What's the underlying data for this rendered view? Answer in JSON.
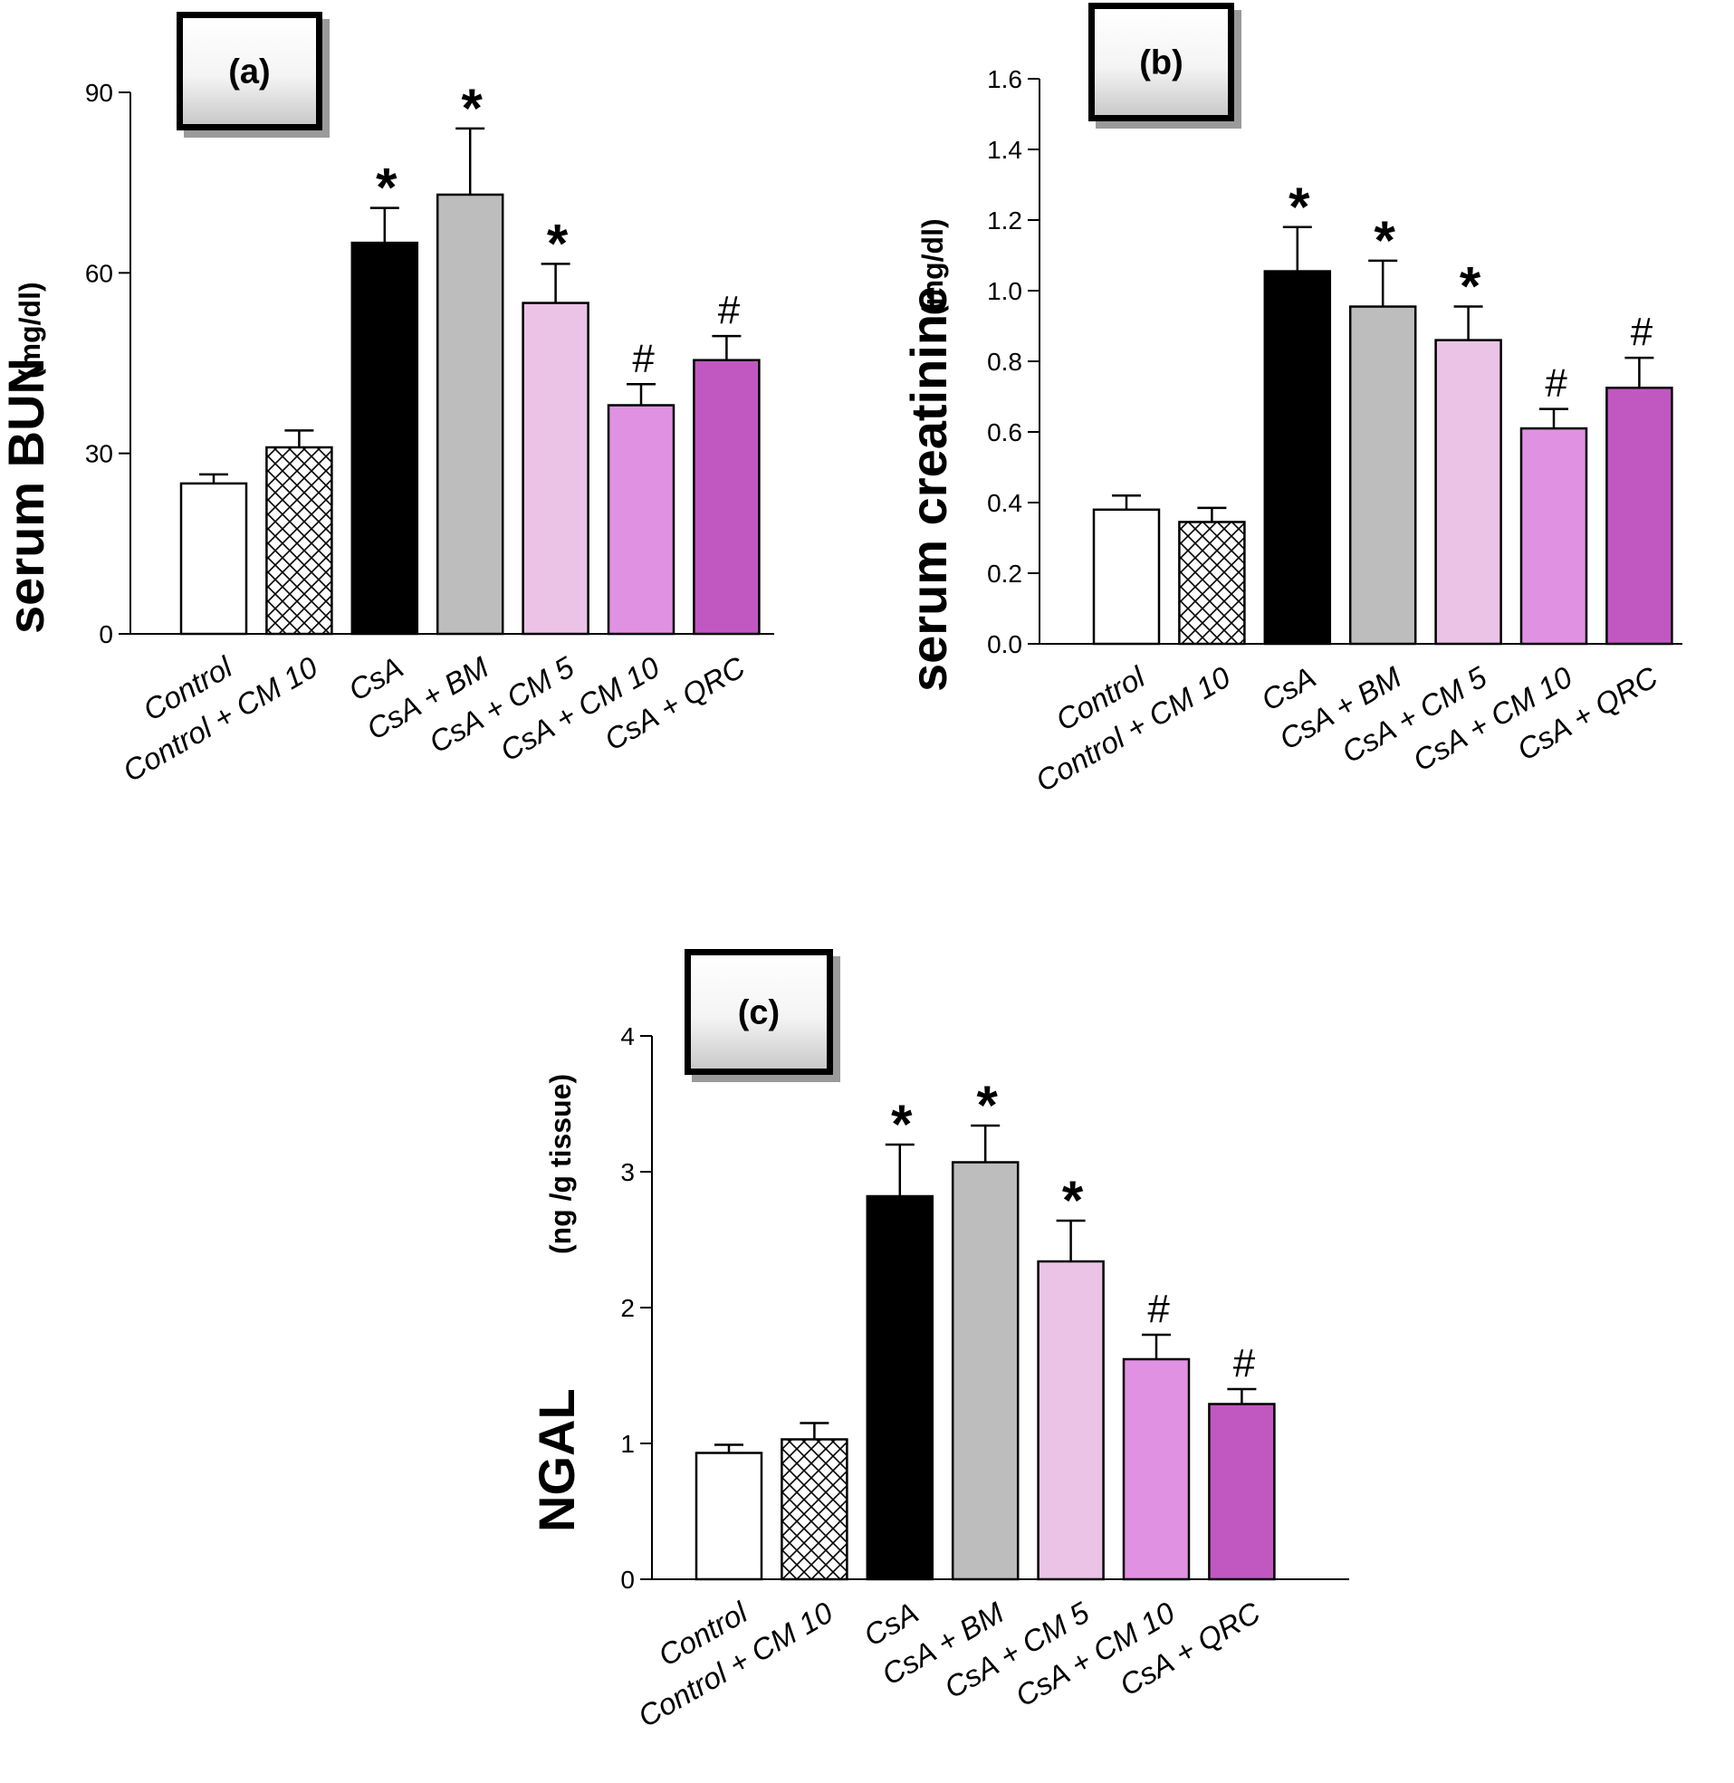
{
  "chart_data": [
    {
      "type": "bar",
      "panel_label": "(a)",
      "ylabel": "serum BUN",
      "yunit": "(mg/dl)",
      "ylim": [
        0,
        90
      ],
      "yticks": [
        "0",
        "30",
        "60",
        "90"
      ],
      "categories": [
        "Control",
        "Control +  CM 10",
        "CsA",
        "CsA + BM",
        "CsA + CM 5",
        "CsA + CM 10",
        "CsA + QRC"
      ],
      "values": [
        25,
        31,
        65,
        73,
        55,
        38,
        45.5
      ],
      "errors": [
        1.5,
        2.8,
        5.8,
        11,
        6.5,
        3.5,
        4
      ],
      "significance": [
        "",
        "",
        "*",
        "*",
        "*",
        "#",
        "#"
      ]
    },
    {
      "type": "bar",
      "panel_label": "(b)",
      "ylabel": "serum creatinine",
      "yunit": "(mg/dl)",
      "ylim": [
        0,
        1.6
      ],
      "yticks": [
        "0.0",
        "0.2",
        "0.4",
        "0.6",
        "0.8",
        "1.0",
        "1.2",
        "1.4",
        "1.6"
      ],
      "categories": [
        "Control",
        "Control +  CM 10",
        "CsA",
        "CsA + BM",
        "CsA + CM 5",
        "CsA + CM 10",
        "CsA + QRC"
      ],
      "values": [
        0.38,
        0.345,
        1.055,
        0.955,
        0.86,
        0.61,
        0.725
      ],
      "errors": [
        0.04,
        0.04,
        0.125,
        0.13,
        0.095,
        0.055,
        0.085
      ],
      "significance": [
        "",
        "",
        "*",
        "*",
        "*",
        "#",
        "#"
      ]
    },
    {
      "type": "bar",
      "panel_label": "(c)",
      "ylabel": "NGAL",
      "yunit": "(ng /g tissue)",
      "ylim": [
        0,
        4
      ],
      "yticks": [
        "0",
        "1",
        "2",
        "3",
        "4"
      ],
      "categories": [
        "Control",
        "Control +  CM 10",
        "CsA",
        "CsA + BM",
        "CsA + CM 5",
        "CsA + CM 10",
        "CsA + QRC"
      ],
      "values": [
        0.93,
        1.03,
        2.82,
        3.07,
        2.34,
        1.62,
        1.29
      ],
      "errors": [
        0.06,
        0.12,
        0.38,
        0.27,
        0.3,
        0.18,
        0.11
      ],
      "significance": [
        "",
        "",
        "*",
        "*",
        "*",
        "#",
        "#"
      ]
    }
  ],
  "colors": {
    "bars": [
      "#ffffff",
      "hatch",
      "#000000",
      "#bdbdbd",
      "#ebc3e6",
      "#e191e1",
      "#c158c1"
    ],
    "axis": "#000000"
  }
}
